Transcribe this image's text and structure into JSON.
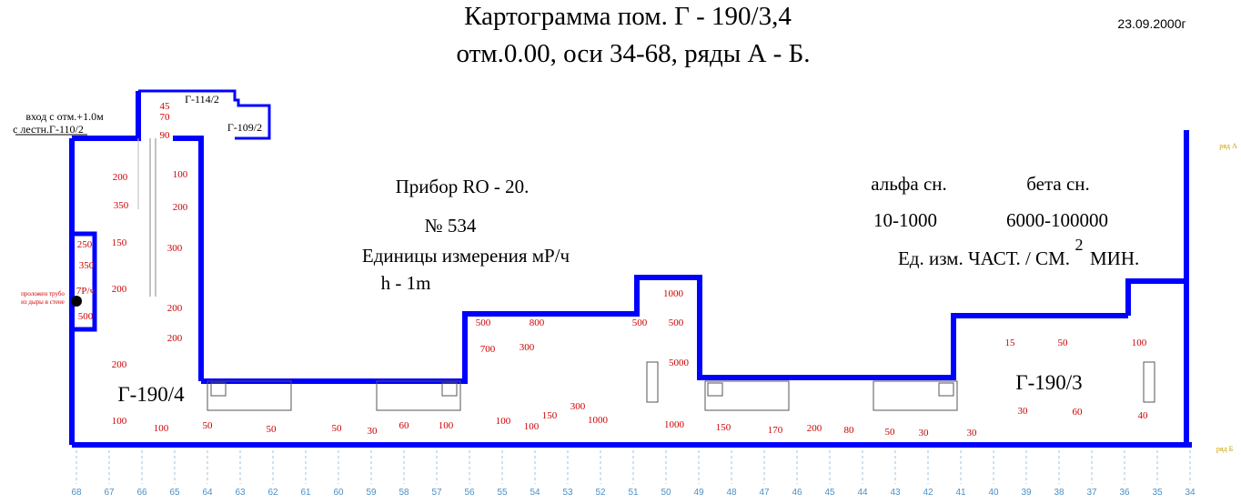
{
  "header": {
    "title_line1": "Картограмма пом. Г - 190/3,4",
    "title_line2": "отм.0.00, оси 34-68, ряды А - Б.",
    "date": "23.09.2000г"
  },
  "instrument": {
    "device": "Прибор RO - 20.",
    "serial": "№ 534",
    "units": "Единицы измерения мР/ч",
    "height": "h - 1m"
  },
  "contamination": {
    "alpha_label": "альфа сн.",
    "beta_label": "бета сн.",
    "alpha_range": "10-1000",
    "beta_range": "6000-100000",
    "units_prefix": "Ед. изм. ЧАСТ. / СМ.",
    "units_sup": "2",
    "units_suffix": "МИН."
  },
  "rooms": {
    "g190_4": "Г-190/4",
    "g190_3": "Г-190/3",
    "g114_2": "Г-114/2",
    "g109_2": "Г-109/2"
  },
  "notes": {
    "entrance_line1": "вход с отм.+1.0м",
    "entrance_line2": "с лестн.Г-110/2",
    "hole_line1": "проложен трубо",
    "hole_line2": "из дыры в стене",
    "row_a": "ряд А",
    "row_b": "ряд Б"
  },
  "axes": [
    "68",
    "67",
    "66",
    "65",
    "64",
    "63",
    "62",
    "61",
    "60",
    "59",
    "58",
    "57",
    "56",
    "55",
    "54",
    "53",
    "52",
    "51",
    "50",
    "49",
    "48",
    "47",
    "46",
    "45",
    "44",
    "43",
    "42",
    "41",
    "40",
    "39",
    "38",
    "37",
    "36",
    "35",
    "34"
  ],
  "readings": [
    "45",
    "70",
    "90",
    "200",
    "100",
    "350",
    "200",
    "250",
    "150",
    "300",
    "350",
    "7Р/ч",
    "200",
    "500",
    "200",
    "200",
    "200",
    "100",
    "100",
    "50",
    "50",
    "50",
    "30",
    "60",
    "100",
    "500",
    "800",
    "700",
    "300",
    "100",
    "100",
    "150",
    "300",
    "1000",
    "1000",
    "500",
    "500",
    "5000",
    "1000",
    "150",
    "170",
    "200",
    "80",
    "50",
    "30",
    "30",
    "15",
    "50",
    "100",
    "30",
    "60",
    "40"
  ],
  "colors": {
    "wall": "#0000ff",
    "reading": "#cc0000",
    "axis": "#4a90c8",
    "text": "#000000",
    "row_label": "#c8a000"
  }
}
